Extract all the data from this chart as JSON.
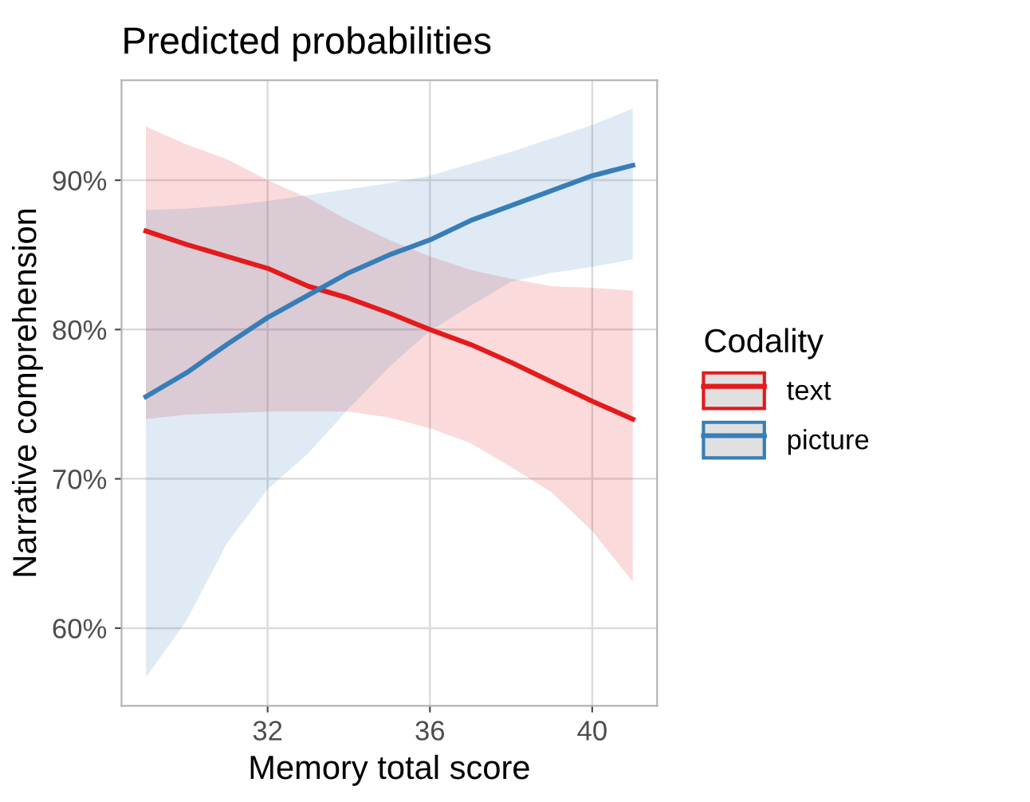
{
  "chart_data": {
    "type": "line",
    "title": "Predicted probabilities",
    "xlabel": "Memory total score",
    "ylabel": "Narrative comprehension",
    "legend_title": "Codality",
    "legend": "right",
    "grid": true,
    "line_style": "solid",
    "marker": "none",
    "x": [
      29,
      30,
      31,
      32,
      33,
      34,
      35,
      36,
      37,
      38,
      39,
      40,
      41
    ],
    "xlim": [
      28.4,
      41.6
    ],
    "xticks": [
      32,
      36,
      40
    ],
    "ylim": [
      54.8,
      96.7
    ],
    "yticks": [
      {
        "value": 60,
        "label": "60%"
      },
      {
        "value": 70,
        "label": "70%"
      },
      {
        "value": 80,
        "label": "80%"
      },
      {
        "value": 90,
        "label": "90%"
      }
    ],
    "series": [
      {
        "name": "text",
        "color": "#e41a1c",
        "values": [
          86.6,
          85.7,
          84.9,
          84.1,
          82.9,
          82.1,
          81.1,
          80.0,
          79.0,
          77.8,
          76.5,
          75.2,
          74.0
        ],
        "lower": [
          74.0,
          74.3,
          74.4,
          74.5,
          74.5,
          74.5,
          74.1,
          73.4,
          72.4,
          70.8,
          69.1,
          66.5,
          63.1
        ],
        "upper": [
          93.6,
          92.4,
          91.4,
          90.0,
          88.8,
          87.3,
          86.0,
          84.9,
          84.0,
          83.4,
          82.9,
          82.8,
          82.6
        ]
      },
      {
        "name": "picture",
        "color": "#377eb8",
        "values": [
          75.5,
          77.1,
          79.0,
          80.8,
          82.3,
          83.8,
          85.0,
          86.0,
          87.3,
          88.3,
          89.3,
          90.3,
          91.0
        ],
        "lower": [
          56.7,
          60.5,
          65.7,
          69.3,
          71.7,
          74.7,
          77.5,
          79.9,
          81.6,
          83.2,
          83.8,
          84.2,
          84.7
        ],
        "upper": [
          88.0,
          88.1,
          88.3,
          88.6,
          89.0,
          89.4,
          89.8,
          90.3,
          91.1,
          91.9,
          92.8,
          93.7,
          94.8
        ]
      }
    ]
  }
}
